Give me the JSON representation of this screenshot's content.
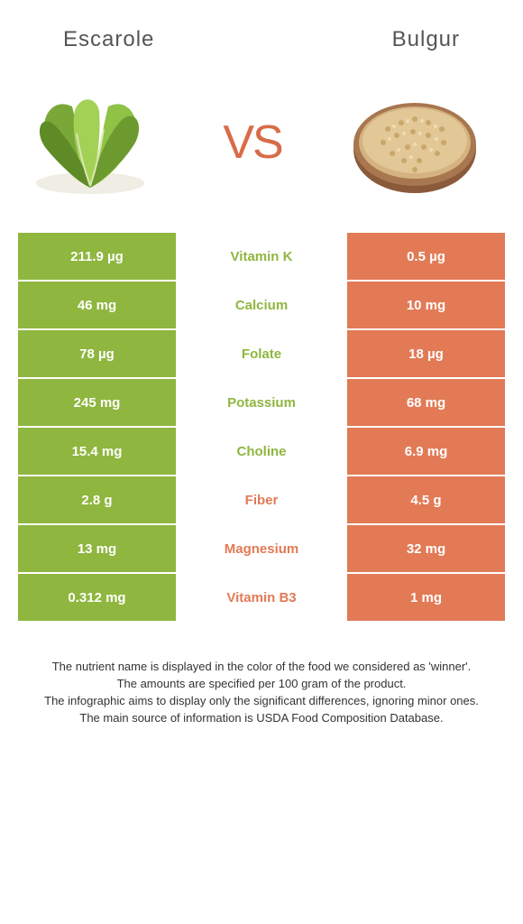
{
  "left": {
    "title": "Escarole",
    "color": "#8fb63f"
  },
  "right": {
    "title": "Bulgur",
    "color": "#e27a56"
  },
  "vs_label": "VS",
  "vs_color": "#d86c48",
  "nutrient_text_left_color": "#8fb63f",
  "nutrient_text_right_color": "#e27a56",
  "rows": [
    {
      "left": "211.9 µg",
      "nutrient": "Vitamin K",
      "right": "0.5 µg",
      "winner": "left"
    },
    {
      "left": "46 mg",
      "nutrient": "Calcium",
      "right": "10 mg",
      "winner": "left"
    },
    {
      "left": "78 µg",
      "nutrient": "Folate",
      "right": "18 µg",
      "winner": "left"
    },
    {
      "left": "245 mg",
      "nutrient": "Potassium",
      "right": "68 mg",
      "winner": "left"
    },
    {
      "left": "15.4 mg",
      "nutrient": "Choline",
      "right": "6.9 mg",
      "winner": "left"
    },
    {
      "left": "2.8 g",
      "nutrient": "Fiber",
      "right": "4.5 g",
      "winner": "right"
    },
    {
      "left": "13 mg",
      "nutrient": "Magnesium",
      "right": "32 mg",
      "winner": "right"
    },
    {
      "left": "0.312 mg",
      "nutrient": "Vitamin B3",
      "right": "1 mg",
      "winner": "right"
    }
  ],
  "footer": {
    "l1": "The nutrient name is displayed in the color of the food we considered as 'winner'.",
    "l2": "The amounts are specified per 100 gram of the product.",
    "l3": "The infographic aims to display only the significant differences, ignoring minor ones.",
    "l4": "The main source of information is USDA Food Composition Database."
  }
}
